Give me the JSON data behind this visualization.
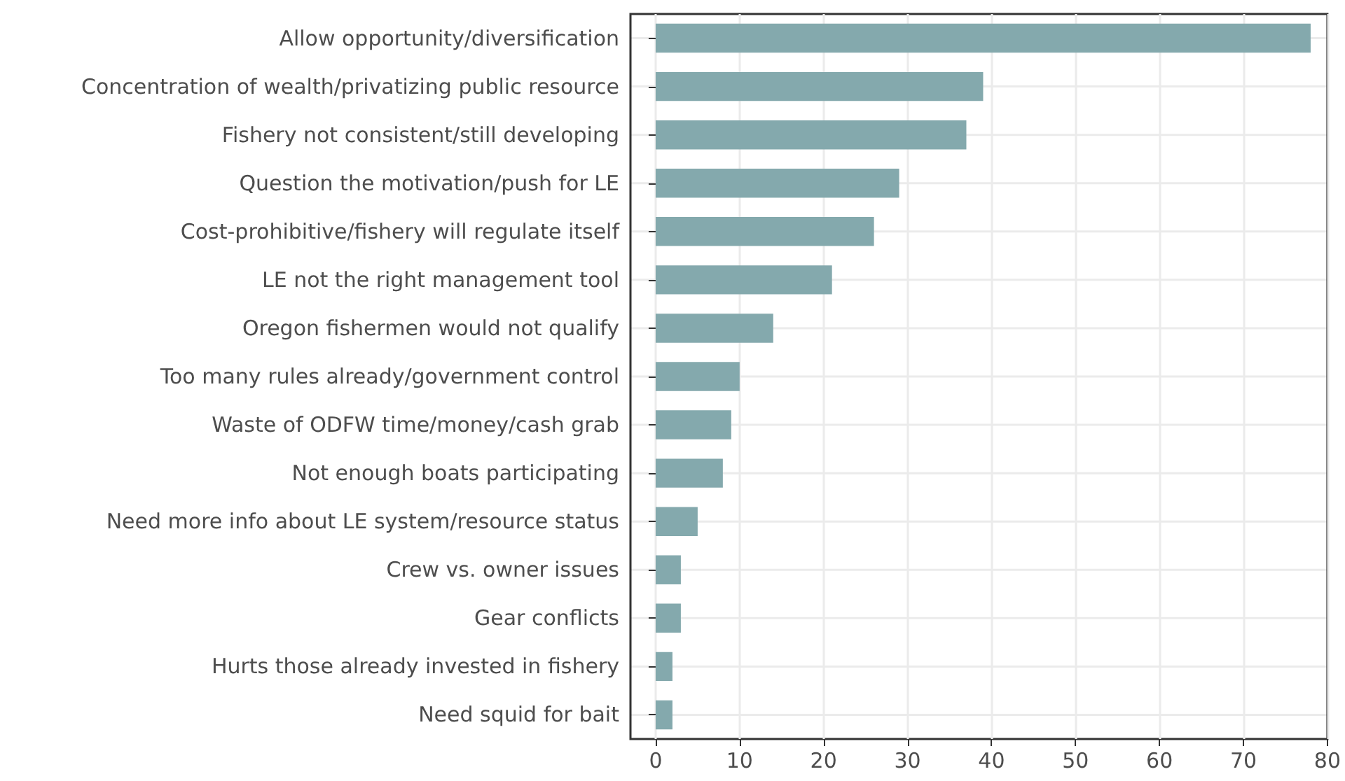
{
  "chart_data": {
    "type": "bar",
    "orientation": "horizontal",
    "categories": [
      "Allow opportunity/diversification",
      "Concentration of wealth/privatizing public resource",
      "Fishery not consistent/still developing",
      "Question the motivation/push for LE",
      "Cost-prohibitive/fishery will regulate itself",
      "LE not the right management tool",
      "Oregon fishermen would not qualify",
      "Too many rules already/government control",
      "Waste of ODFW time/money/cash grab",
      "Not enough boats participating",
      "Need more info about LE system/resource status",
      "Crew vs. owner issues",
      "Gear conflicts",
      "Hurts those already invested in fishery",
      "Need squid for bait"
    ],
    "values": [
      78,
      39,
      37,
      29,
      26,
      21,
      14,
      10,
      9,
      8,
      5,
      3,
      3,
      2,
      2
    ],
    "color": "#84a9ad",
    "xlim": [
      -3,
      80
    ],
    "xticks": [
      0,
      10,
      20,
      30,
      40,
      50,
      60,
      70,
      80
    ],
    "grid": true
  }
}
